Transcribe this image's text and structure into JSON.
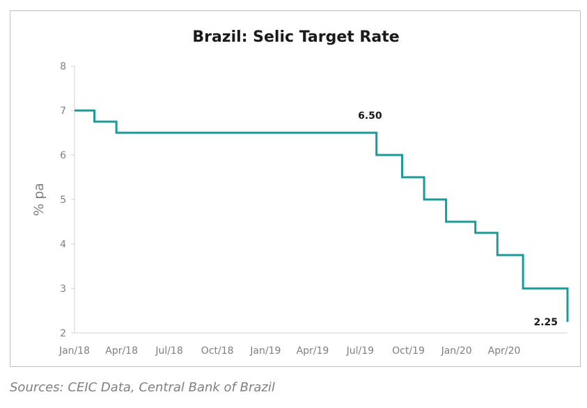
{
  "chart_data": {
    "type": "line",
    "title": "Brazil: Selic Target Rate",
    "ylabel": "% pa",
    "xlabel": "",
    "ylim": [
      2,
      8
    ],
    "yticks": [
      2,
      3,
      4,
      5,
      6,
      7,
      8
    ],
    "xlim": [
      "2018-01-01",
      "2020-07-31"
    ],
    "xticks": [
      {
        "date": "2018-01-01",
        "label": "Jan/18"
      },
      {
        "date": "2018-04-01",
        "label": "Apr/18"
      },
      {
        "date": "2018-07-01",
        "label": "Jul/18"
      },
      {
        "date": "2018-10-01",
        "label": "Oct/18"
      },
      {
        "date": "2019-01-01",
        "label": "Jan/19"
      },
      {
        "date": "2019-04-01",
        "label": "Apr/19"
      },
      {
        "date": "2019-07-01",
        "label": "Jul/19"
      },
      {
        "date": "2019-10-01",
        "label": "Oct/19"
      },
      {
        "date": "2020-01-01",
        "label": "Jan/20"
      },
      {
        "date": "2020-04-01",
        "label": "Apr/20"
      }
    ],
    "step": "after",
    "color": "#1a9a98",
    "grid": false,
    "series": [
      {
        "points": [
          {
            "x": "2018-01-01",
            "y": 7.0
          },
          {
            "x": "2018-02-08",
            "y": 6.75
          },
          {
            "x": "2018-03-22",
            "y": 6.5
          },
          {
            "x": "2019-08-01",
            "y": 6.0
          },
          {
            "x": "2019-09-19",
            "y": 5.5
          },
          {
            "x": "2019-10-31",
            "y": 5.0
          },
          {
            "x": "2019-12-12",
            "y": 4.5
          },
          {
            "x": "2020-02-06",
            "y": 4.25
          },
          {
            "x": "2020-03-19",
            "y": 3.75
          },
          {
            "x": "2020-05-07",
            "y": 3.0
          },
          {
            "x": "2020-07-31",
            "y": 2.25
          }
        ]
      }
    ],
    "annotations": [
      {
        "text": "6.50",
        "x": "2019-07-25",
        "y": 6.5,
        "position": "above-left"
      },
      {
        "text": "2.25",
        "x": "2020-07-31",
        "y": 2.25,
        "position": "left"
      }
    ]
  },
  "source_note": "Sources: CEIC Data, Central Bank of Brazil"
}
